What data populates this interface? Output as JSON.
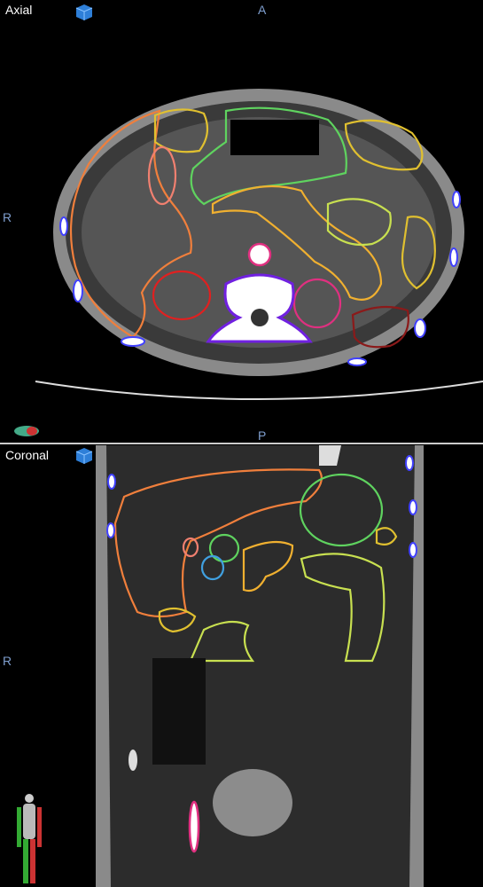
{
  "panels": [
    {
      "view": "Axial",
      "orientation": {
        "top": "A",
        "left": "R",
        "bottom": "P"
      }
    },
    {
      "view": "Coronal",
      "orientation": {
        "left": "R"
      }
    }
  ]
}
